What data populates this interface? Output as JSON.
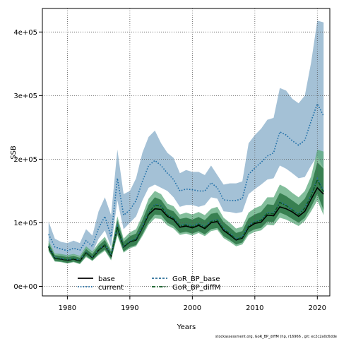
{
  "chart_data": {
    "type": "line",
    "xlabel": "Years",
    "ylabel": "SSB",
    "xlim": [
      1976,
      2022
    ],
    "ylim": [
      -15000,
      437000
    ],
    "x_ticks": [
      1980,
      1990,
      2000,
      2010,
      2020
    ],
    "x_tick_labels": [
      "1980",
      "1990",
      "2000",
      "2010",
      "2020"
    ],
    "y_ticks": [
      0,
      100000,
      200000,
      300000,
      400000
    ],
    "y_tick_labels": [
      "0e+00",
      "1e+05",
      "2e+05",
      "3e+05",
      "4e+05"
    ],
    "grid": true,
    "legend_placement": "bottom-left",
    "x": [
      1977,
      1978,
      1979,
      1980,
      1981,
      1982,
      1983,
      1984,
      1985,
      1986,
      1987,
      1988,
      1989,
      1990,
      1991,
      1992,
      1993,
      1994,
      1995,
      1996,
      1997,
      1998,
      1999,
      2000,
      2001,
      2002,
      2003,
      2004,
      2005,
      2006,
      2007,
      2008,
      2009,
      2010,
      2011,
      2012,
      2013,
      2014,
      2015,
      2016,
      2017,
      2018,
      2019,
      2020,
      2021
    ],
    "series": [
      {
        "name": "base",
        "color": "#000000",
        "style": "solid",
        "values": [
          62000,
          44000,
          43000,
          41000,
          43000,
          40000,
          53000,
          45000,
          57000,
          65000,
          48000,
          93000,
          62000,
          70000,
          73000,
          92000,
          113000,
          122000,
          121000,
          110000,
          105000,
          93000,
          95000,
          92000,
          96000,
          91000,
          100000,
          102000,
          88000,
          81000,
          73000,
          76000,
          93000,
          99000,
          101000,
          112000,
          111000,
          125000,
          122000,
          117000,
          110000,
          118000,
          137000,
          155000,
          145000
        ]
      },
      {
        "name": "current",
        "color": "#1f6fa8",
        "style": "dotted",
        "values": [
          82000,
          62000,
          59000,
          56000,
          60000,
          57000,
          72000,
          63000,
          92000,
          110000,
          78000,
          170000,
          112000,
          120000,
          135000,
          165000,
          190000,
          198000,
          190000,
          178000,
          168000,
          150000,
          153000,
          152000,
          150000,
          150000,
          163000,
          155000,
          136000,
          135000,
          135000,
          138000,
          176000,
          186000,
          195000,
          205000,
          210000,
          243000,
          238000,
          229000,
          222000,
          230000,
          260000,
          287000,
          268000
        ]
      },
      {
        "name": "GoR_BP_base",
        "color": "#2a6f97",
        "style": "dashed",
        "values": [
          64000,
          45000,
          44000,
          42000,
          44000,
          41000,
          54000,
          46000,
          58000,
          66000,
          49000,
          95000,
          63000,
          71000,
          75000,
          94000,
          116000,
          129000,
          127000,
          113000,
          108000,
          96000,
          98000,
          95000,
          99000,
          94000,
          103000,
          105000,
          91000,
          84000,
          75000,
          78000,
          96000,
          102000,
          105000,
          116000,
          115000,
          133000,
          128000,
          121000,
          114000,
          124000,
          143000,
          170000,
          150000
        ]
      },
      {
        "name": "GoR_BP_diffM",
        "color": "#0b5a1f",
        "style": "dashdot",
        "values": [
          63000,
          44500,
          43500,
          41500,
          43500,
          40500,
          53500,
          45500,
          57500,
          65500,
          48500,
          94000,
          62500,
          70500,
          74000,
          93000,
          115000,
          128000,
          126000,
          112000,
          107000,
          95000,
          97000,
          94000,
          98000,
          93000,
          102000,
          104000,
          90000,
          83000,
          74000,
          77000,
          95000,
          101000,
          104000,
          115000,
          114000,
          132000,
          127000,
          120000,
          113000,
          123000,
          142000,
          168000,
          148000
        ]
      }
    ],
    "bands": [
      {
        "name": "current-ci",
        "color": "#7ea7c4",
        "opacity": 0.7,
        "upper": [
          102000,
          75000,
          70000,
          68000,
          72000,
          68000,
          90000,
          80000,
          118000,
          140000,
          112000,
          215000,
          145000,
          150000,
          170000,
          210000,
          235000,
          245000,
          225000,
          210000,
          202000,
          178000,
          183000,
          180000,
          180000,
          175000,
          190000,
          175000,
          160000,
          162000,
          162000,
          165000,
          225000,
          238000,
          248000,
          262000,
          265000,
          312000,
          308000,
          295000,
          288000,
          300000,
          352000,
          418000,
          415000
        ],
        "lower": [
          70000,
          52000,
          48000,
          46000,
          50000,
          47000,
          60000,
          53000,
          75000,
          88000,
          62000,
          135000,
          90000,
          100000,
          110000,
          135000,
          155000,
          160000,
          155000,
          150000,
          140000,
          125000,
          128000,
          128000,
          125000,
          128000,
          140000,
          138000,
          118000,
          117000,
          115000,
          117000,
          145000,
          153000,
          160000,
          168000,
          170000,
          190000,
          185000,
          178000,
          170000,
          172000,
          190000,
          205000,
          185000
        ]
      },
      {
        "name": "GoR_BP_base-ci",
        "color": "#5aa87a",
        "opacity": 0.75,
        "upper": [
          72000,
          52000,
          51000,
          49000,
          51000,
          48000,
          63000,
          55000,
          68000,
          78000,
          58000,
          110000,
          75000,
          85000,
          90000,
          112000,
          138000,
          150000,
          145000,
          130000,
          126000,
          113000,
          116000,
          113000,
          117000,
          112000,
          122000,
          125000,
          108000,
          100000,
          91000,
          94000,
          116000,
          123000,
          127000,
          140000,
          140000,
          160000,
          155000,
          147000,
          140000,
          150000,
          173000,
          215000,
          212000
        ],
        "lower": [
          55000,
          39000,
          38000,
          36000,
          38000,
          35000,
          46000,
          40000,
          49000,
          56000,
          41000,
          80000,
          53000,
          60000,
          63000,
          79000,
          97000,
          107000,
          106000,
          96000,
          91000,
          81000,
          83000,
          80000,
          84000,
          79000,
          87000,
          89000,
          76000,
          70000,
          63000,
          66000,
          81000,
          86000,
          88000,
          97000,
          96000,
          108000,
          105000,
          100000,
          95000,
          103000,
          118000,
          135000,
          112000
        ]
      },
      {
        "name": "GoR_BP_diffM-ci",
        "color": "#1f6b38",
        "opacity": 0.75,
        "upper": [
          68000,
          49000,
          48000,
          46000,
          48000,
          45000,
          59000,
          51000,
          64000,
          73000,
          54000,
          104000,
          70000,
          79000,
          83000,
          104000,
          128000,
          140000,
          136000,
          122000,
          118000,
          106000,
          108000,
          105000,
          109000,
          104000,
          114000,
          116000,
          101000,
          93000,
          84000,
          87000,
          107000,
          113000,
          117000,
          129000,
          128000,
          147000,
          142000,
          135000,
          128000,
          138000,
          158000,
          195000,
          185000
        ],
        "lower": [
          57000,
          40000,
          39000,
          37000,
          39000,
          36000,
          48000,
          41000,
          51000,
          58000,
          43000,
          83000,
          55000,
          62000,
          65000,
          82000,
          101000,
          113000,
          112000,
          100000,
          95000,
          84000,
          86000,
          83000,
          87000,
          82000,
          90000,
          92000,
          79000,
          73000,
          66000,
          69000,
          85000,
          90000,
          92000,
          102000,
          101000,
          116000,
          112000,
          106000,
          100000,
          108000,
          125000,
          145000,
          120000
        ]
      }
    ]
  },
  "footnote": "stockassessment.org, GoR_BP_diffM (hp, r16966 , git: ec2c2a0c6dde"
}
